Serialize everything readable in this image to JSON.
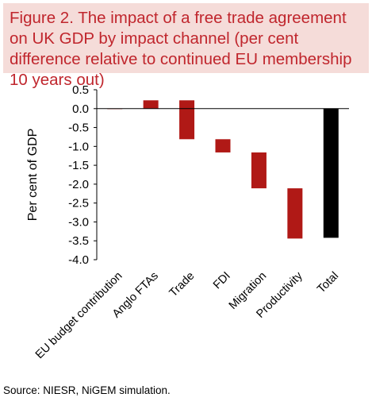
{
  "title": "Figure 2. The impact of a free trade agreement on UK GDP by impact channel (per cent difference relative to continued EU membership 10 years out)",
  "source": "Source: NIESR, NiGEM simulation.",
  "colors": {
    "bar": "#b01916",
    "total_bar": "#000000",
    "title": "#c0262d",
    "title_bg": "#f5dcd9"
  },
  "chart_data": {
    "type": "bar",
    "subtype": "waterfall",
    "ylabel": "Per cent of GDP",
    "xlabel": "",
    "ylim": [
      -4.0,
      0.5
    ],
    "yticks": [
      "0.5",
      "0.0",
      "-0.5",
      "-1.0",
      "-1.5",
      "-2.0",
      "-2.5",
      "-3.0",
      "-3.5",
      "-4.0"
    ],
    "grid": false,
    "categories": [
      "EU budget contribution",
      "Anglo FTAs",
      "Trade",
      "FDI",
      "Migration",
      "Productivity",
      "Total"
    ],
    "values": [
      0.0,
      0.22,
      -1.03,
      -0.35,
      -0.95,
      -1.33,
      -3.42
    ],
    "bars": [
      {
        "label": "EU budget contribution",
        "start": 0.0,
        "end": 0.0
      },
      {
        "label": "Anglo FTAs",
        "start": 0.0,
        "end": 0.22
      },
      {
        "label": "Trade",
        "start": 0.22,
        "end": -0.81
      },
      {
        "label": "FDI",
        "start": -0.81,
        "end": -1.16
      },
      {
        "label": "Migration",
        "start": -1.16,
        "end": -2.11
      },
      {
        "label": "Productivity",
        "start": -2.11,
        "end": -3.44
      },
      {
        "label": "Total",
        "start": 0.0,
        "end": -3.42
      }
    ]
  }
}
